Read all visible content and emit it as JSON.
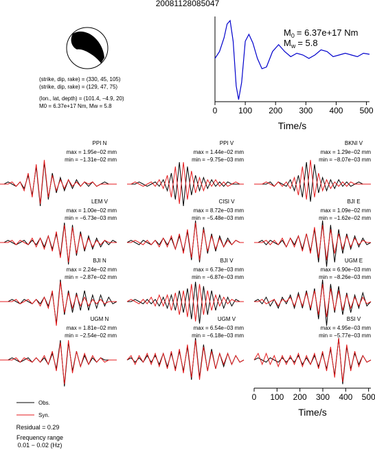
{
  "title": "20081128085047",
  "mechanism": [
    "(strike, dip, rake) = (330, 45, 105)",
    "(strike, dip, rake) = (129, 47, 75)",
    "(lon., lat, depth) = (101.4, −4.9, 20)",
    "M0 = 6.37e+17 Nm, Mw = 5.8"
  ],
  "stf": {
    "type": "line",
    "moment": {
      "symbol": "M",
      "sub": "0",
      "text": "= 6.37e+17 Nm"
    },
    "magnitude": {
      "symbol": "M",
      "sub": "w",
      "text": "= 5.8"
    },
    "x": [
      0,
      15,
      30,
      40,
      50,
      60,
      70,
      78,
      88,
      100,
      112,
      125,
      140,
      155,
      170,
      190,
      210,
      230,
      250,
      270,
      290,
      310,
      330,
      350,
      370,
      390,
      410,
      430,
      450,
      470,
      490,
      510
    ],
    "values": [
      -0.1,
      0.1,
      0.5,
      0.9,
      1.0,
      0.4,
      -0.9,
      -1.3,
      -0.8,
      0.4,
      0.6,
      0.35,
      -0.1,
      -0.4,
      -0.35,
      0.1,
      0.3,
      0.1,
      -0.05,
      0.05,
      0,
      -0.1,
      0,
      0.15,
      0.1,
      -0.05,
      0,
      0.05,
      0,
      -0.05,
      0.05,
      0.02
    ],
    "color": "#0000cc",
    "xlim": [
      0,
      510
    ],
    "xticks": [
      0,
      100,
      200,
      300,
      400,
      500
    ],
    "xlabel": "Time/s"
  },
  "panels": [
    {
      "station": "PPI N",
      "max": "max = 1.95e−02 mm",
      "min": "min = −1.31e−02 mm",
      "obs": [
        0,
        0,
        0.1,
        0,
        -0.1,
        0.1,
        -0.2,
        0.4,
        -0.5,
        0.8,
        -1,
        1,
        -0.7,
        0.5,
        -0.4,
        0.3,
        -0.3,
        0.2,
        -0.2,
        0.2,
        -0.1,
        0.1,
        -0.1,
        0.1,
        -0.1,
        0,
        0.1,
        0,
        0,
        0
      ],
      "syn": [
        0,
        0,
        0,
        0.1,
        -0.1,
        0.1,
        -0.3,
        0.5,
        -0.6,
        0.9,
        -0.9,
        1.1,
        -0.6,
        0.4,
        -0.3,
        0.2,
        -0.2,
        0.2,
        -0.1,
        0.1,
        -0.1,
        0.1,
        0,
        0.1,
        -0.1,
        0,
        0,
        0,
        0,
        0
      ]
    },
    {
      "station": "PPI V",
      "max": "max = 1.44e−02 mm",
      "min": "min = −9.75e−03 mm",
      "obs": [
        0,
        0,
        0,
        0.1,
        0,
        -0.1,
        0,
        0.1,
        -0.1,
        0.2,
        -0.3,
        0.5,
        -0.7,
        1,
        -1,
        0.8,
        -0.5,
        0.4,
        -0.3,
        0.3,
        -0.2,
        0.2,
        -0.1,
        0.1,
        -0.1,
        0.1,
        0,
        0,
        0,
        0
      ],
      "syn": [
        0,
        0,
        0.1,
        0,
        -0.1,
        0,
        0.1,
        -0.1,
        0.2,
        -0.2,
        0.4,
        -0.6,
        0.8,
        -0.9,
        1,
        -0.7,
        0.6,
        -0.4,
        0.3,
        -0.3,
        0.2,
        -0.1,
        0.2,
        -0.1,
        0.1,
        -0.1,
        0,
        0.1,
        0,
        0
      ]
    },
    {
      "station": "BKNI V",
      "max": "max = 1.29e−02 mm",
      "min": "min = −8.07e−03 mm",
      "obs": [
        0,
        0,
        0,
        0,
        0.1,
        -0.1,
        0.1,
        0,
        -0.1,
        0.2,
        -0.3,
        0.4,
        -0.6,
        1,
        -0.8,
        0.9,
        -0.4,
        0.3,
        -0.3,
        0.2,
        -0.2,
        0.2,
        -0.1,
        0.1,
        -0.1,
        0,
        0.1,
        0,
        0,
        0
      ],
      "syn": [
        0,
        0,
        0,
        0.1,
        0,
        -0.1,
        0.1,
        -0.1,
        0.1,
        -0.2,
        0.3,
        -0.5,
        0.8,
        -0.7,
        1.1,
        -0.6,
        0.5,
        -0.3,
        0.2,
        -0.2,
        0.1,
        -0.1,
        0.1,
        -0.1,
        0.1,
        0,
        0,
        0,
        0,
        0
      ]
    },
    {
      "station": "LEM V",
      "max": "max = 1.00e−02 mm",
      "min": "min = −6.73e−03 mm",
      "obs": [
        0,
        0,
        0.1,
        0,
        -0.1,
        0,
        0.1,
        -0.1,
        0.1,
        -0.1,
        0.2,
        -0.2,
        0.3,
        -0.3,
        0.4,
        -0.6,
        0.9,
        -1,
        0.8,
        -0.6,
        0.5,
        -0.4,
        0.3,
        -0.3,
        0.2,
        -0.2,
        0.1,
        -0.1,
        0.1,
        0
      ],
      "syn": [
        0,
        0,
        0,
        0.1,
        -0.1,
        0.1,
        0,
        -0.1,
        0.2,
        -0.2,
        0.2,
        -0.3,
        0.3,
        -0.4,
        0.5,
        -0.7,
        0.8,
        -0.9,
        0.7,
        -0.5,
        0.4,
        -0.3,
        0.2,
        -0.2,
        0.1,
        -0.1,
        0.1,
        0,
        0,
        0
      ]
    },
    {
      "station": "CISI V",
      "max": "max = 8.72e−03 mm",
      "min": "min = −5.48e−03 mm",
      "obs": [
        0,
        0.1,
        0,
        -0.1,
        0.1,
        0,
        -0.1,
        0.1,
        -0.1,
        0.2,
        -0.1,
        0.2,
        -0.3,
        0.3,
        -0.4,
        0.5,
        -0.8,
        1,
        -0.9,
        0.7,
        -0.5,
        0.4,
        -0.4,
        0.3,
        -0.2,
        0.2,
        -0.1,
        0.1,
        0,
        0
      ],
      "syn": [
        0,
        0,
        0.1,
        0,
        -0.1,
        0.1,
        -0.1,
        0.1,
        -0.2,
        0.2,
        -0.2,
        0.3,
        -0.3,
        0.4,
        -0.5,
        0.6,
        -0.7,
        0.9,
        -0.8,
        0.6,
        -0.4,
        0.3,
        -0.3,
        0.2,
        -0.2,
        0.1,
        -0.1,
        0.1,
        0,
        0
      ]
    },
    {
      "station": "BJI E",
      "max": "max = 1.09e−02 mm",
      "min": "min = −1.62e−02 mm",
      "obs": [
        0,
        0,
        0.1,
        -0.1,
        0.1,
        0,
        -0.1,
        0.1,
        -0.2,
        0.2,
        -0.1,
        0.3,
        -0.3,
        0.4,
        -0.4,
        0.6,
        -0.9,
        1,
        -1.1,
        0.8,
        -0.9,
        0.6,
        -0.5,
        0.4,
        -0.3,
        0.3,
        -0.2,
        0.2,
        -0.1,
        0
      ],
      "syn": [
        0,
        0,
        0,
        0.1,
        -0.1,
        0.1,
        -0.1,
        0.2,
        -0.2,
        0.2,
        -0.2,
        0.3,
        -0.4,
        0.4,
        -0.5,
        0.7,
        -0.7,
        0.8,
        -0.8,
        0.6,
        -0.5,
        0.4,
        -0.3,
        0.3,
        -0.2,
        0.2,
        -0.1,
        0.1,
        0,
        0
      ]
    },
    {
      "station": "BJI N",
      "max": "max = 2.24e−02 mm",
      "min": "min = −2.87e−02 mm",
      "obs": [
        0,
        0,
        0,
        0.1,
        0,
        -0.1,
        0.1,
        0,
        -0.1,
        0.1,
        -0.1,
        0.2,
        -0.2,
        0.4,
        -1,
        1,
        -0.6,
        0.5,
        -0.5,
        0.4,
        -0.4,
        0.5,
        -0.4,
        0.3,
        -0.3,
        0.3,
        -0.2,
        0.2,
        -0.1,
        0
      ],
      "syn": [
        0,
        0,
        0,
        0,
        0.1,
        -0.1,
        0,
        0.1,
        -0.1,
        0.1,
        -0.2,
        0.2,
        -0.3,
        0.5,
        -1.1,
        0.9,
        -0.5,
        0.4,
        -0.3,
        0.3,
        -0.2,
        0.2,
        -0.2,
        0.1,
        -0.1,
        0.1,
        -0.1,
        0,
        0,
        0
      ]
    },
    {
      "station": "BJI V",
      "max": "max = 6.73e−03 mm",
      "min": "min = −6.87e−03 mm",
      "obs": [
        0,
        0,
        0.1,
        0,
        -0.1,
        0.1,
        -0.1,
        0.1,
        -0.2,
        0.2,
        -0.3,
        0.3,
        -0.4,
        0.5,
        -0.5,
        0.6,
        -0.8,
        0.9,
        -1,
        0.7,
        -0.6,
        0.5,
        -0.4,
        0.3,
        -0.3,
        0.2,
        -0.2,
        0.1,
        0,
        0
      ],
      "syn": [
        0,
        0.1,
        0,
        -0.1,
        0.1,
        -0.1,
        0.2,
        -0.2,
        0.3,
        -0.2,
        0.3,
        -0.4,
        0.4,
        -0.6,
        0.5,
        -0.7,
        0.8,
        -0.9,
        0.8,
        -0.6,
        0.5,
        -0.4,
        0.3,
        -0.2,
        0.2,
        -0.1,
        0.1,
        0,
        0,
        0
      ]
    },
    {
      "station": "UGM E",
      "max": "max = 6.90e−03 mm",
      "min": "min = −8.26e−03 mm",
      "obs": [
        0,
        0.1,
        -0.1,
        0.2,
        -0.2,
        0.1,
        -0.3,
        0.2,
        -0.1,
        0.3,
        -0.3,
        0.4,
        -0.3,
        0.5,
        -0.4,
        0.6,
        -0.8,
        1,
        -1.1,
        0.8,
        -0.5,
        0.7,
        -0.6,
        0.4,
        -0.5,
        0.3,
        -0.3,
        0.4,
        -0.2,
        0
      ],
      "syn": [
        0,
        0,
        0.1,
        -0.1,
        0,
        0.1,
        -0.2,
        0.1,
        0,
        0.2,
        -0.2,
        0.3,
        -0.2,
        0.4,
        -0.3,
        0.5,
        -0.6,
        0.8,
        -0.7,
        0.6,
        -0.4,
        0.5,
        -0.4,
        0.3,
        -0.3,
        0.2,
        -0.2,
        0.2,
        -0.1,
        0
      ]
    },
    {
      "station": "UGM N",
      "max": "max = 1.81e−02 mm",
      "min": "min = −2.54e−02 mm",
      "obs": [
        0,
        0,
        0,
        0.1,
        0,
        -0.1,
        0,
        0.1,
        -0.1,
        0.1,
        -0.1,
        0.1,
        -0.2,
        0.3,
        -0.4,
        0.9,
        -1.2,
        0.8,
        -0.5,
        0.4,
        -0.3,
        0.2,
        -0.2,
        0.1,
        -0.1,
        0.1,
        0,
        0,
        0,
        0
      ],
      "syn": [
        0,
        0,
        0,
        0,
        0.1,
        -0.1,
        0.1,
        0,
        -0.1,
        0.1,
        -0.1,
        0.2,
        -0.2,
        0.4,
        -0.5,
        0.8,
        -1.1,
        0.9,
        -0.6,
        0.4,
        -0.3,
        0.3,
        -0.2,
        0.2,
        -0.1,
        0.1,
        -0.1,
        0,
        0,
        0
      ]
    },
    {
      "station": "UGM V",
      "max": "max = 6.54e−03 mm",
      "min": "min = −6.18e−03 mm",
      "obs": [
        0,
        0.1,
        -0.1,
        0.1,
        -0.1,
        0.2,
        -0.1,
        0.2,
        -0.2,
        0.3,
        -0.3,
        0.3,
        -0.4,
        0.4,
        -0.5,
        0.6,
        -0.9,
        1,
        -0.8,
        0.7,
        -0.5,
        0.5,
        -0.4,
        0.3,
        -0.3,
        0.3,
        -0.2,
        0.2,
        -0.1,
        0
      ],
      "syn": [
        0,
        0.2,
        -0.2,
        0.2,
        -0.1,
        0.3,
        -0.2,
        0.3,
        -0.3,
        0.3,
        -0.4,
        0.4,
        -0.5,
        0.5,
        -0.6,
        0.7,
        -0.8,
        0.9,
        -0.9,
        0.6,
        -0.5,
        0.4,
        -0.4,
        0.3,
        -0.2,
        0.3,
        -0.2,
        0.2,
        -0.1,
        0
      ]
    },
    {
      "station": "BSI V",
      "max": "max = 4.95e−03 mm",
      "min": "min = −5.77e−03 mm",
      "obs": [
        0,
        0.1,
        0,
        -0.1,
        0.1,
        0,
        -0.1,
        0.1,
        -0.1,
        0.1,
        -0.1,
        0.2,
        -0.2,
        0.1,
        -0.2,
        0.2,
        -0.3,
        0.3,
        -0.4,
        0.5,
        -0.7,
        1,
        -1.1,
        0.6,
        -0.4,
        0.3,
        -0.2,
        0.2,
        -0.1,
        0
      ],
      "syn": [
        0,
        0.3,
        -0.2,
        0.3,
        -0.2,
        0.2,
        -0.3,
        0.2,
        -0.2,
        0.2,
        -0.2,
        0.3,
        -0.3,
        0.2,
        -0.2,
        0.3,
        -0.4,
        0.4,
        -0.5,
        0.6,
        -0.8,
        1,
        -1,
        0.7,
        -0.5,
        0.4,
        -0.3,
        0.2,
        -0.1,
        0
      ]
    }
  ],
  "time_axis": {
    "xlim": [
      0,
      510
    ],
    "xticks": [
      0,
      100,
      200,
      300,
      400,
      500
    ],
    "xlabel": "Time/s"
  },
  "legend": [
    {
      "name": "Obs.",
      "color": "#000000"
    },
    {
      "name": "Syn.",
      "color": "#e41a1c"
    }
  ],
  "notes": [
    "Residual = 0.29",
    "Frequency range",
    "0.01 − 0.02 (Hz)"
  ]
}
